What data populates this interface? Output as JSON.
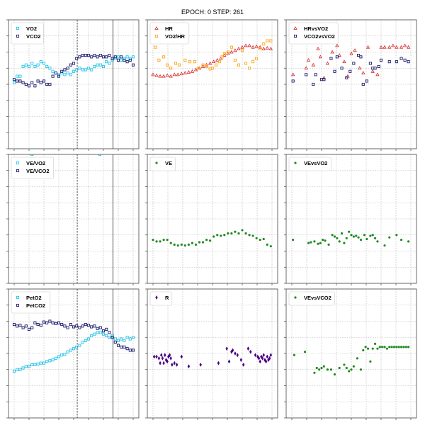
{
  "suptitle": "EPOCH: 0 STEP: 261",
  "colors": {
    "cyan": "#27c6ea",
    "navy": "#1a1a6e",
    "red": "#d62728",
    "orange": "#ffa51a",
    "green": "#228b22",
    "purple": "#4b0082",
    "grid": "#b0b0b0",
    "axis": "#444444"
  },
  "chart_data": [
    {
      "panel": "top-left",
      "type": "scatter",
      "xlim": [
        0,
        100
      ],
      "ylim": [
        0,
        8
      ],
      "vlines": [
        {
          "x": 53,
          "style": "dashed"
        },
        {
          "x": 83,
          "style": "solid"
        }
      ],
      "series": [
        {
          "name": "VO2",
          "marker": "square",
          "color": "cyan",
          "x": [
            0,
            2.5,
            5,
            7.5,
            10,
            12.5,
            15,
            17.5,
            20,
            22.5,
            25,
            27.5,
            30,
            32.5,
            35,
            37.5,
            40,
            42.5,
            45,
            47.5,
            50,
            52.5,
            55,
            57.5,
            60,
            62.5,
            65,
            67.5,
            70,
            72.5,
            75,
            77.5,
            80,
            82.5,
            85,
            87.5,
            90,
            92.5,
            95,
            97.5,
            100
          ],
          "y": [
            4.1,
            4.5,
            4.5,
            5.1,
            5.2,
            5.1,
            5.3,
            5.1,
            5.2,
            5.4,
            5.3,
            5.1,
            5.0,
            4.8,
            4.7,
            4.6,
            4.7,
            4.6,
            4.7,
            4.6,
            4.8,
            4.9,
            5.0,
            4.9,
            4.9,
            5.0,
            4.9,
            5.1,
            5.2,
            5.2,
            5.1,
            5.4,
            5.3,
            5.5,
            5.6,
            5.7,
            5.5,
            5.6,
            5.7,
            5.6,
            5.7
          ]
        },
        {
          "name": "VCO2",
          "marker": "square",
          "color": "navy",
          "x": [
            0,
            2.5,
            5,
            7.5,
            10,
            12.5,
            15,
            17.5,
            20,
            22.5,
            25,
            27.5,
            30,
            32.5,
            35,
            37.5,
            40,
            42.5,
            45,
            47.5,
            50,
            52.5,
            55,
            57.5,
            60,
            62.5,
            65,
            67.5,
            70,
            72.5,
            75,
            77.5,
            80,
            82.5,
            85,
            87.5,
            90,
            92.5,
            95,
            97.5,
            100
          ],
          "y": [
            4.3,
            4.2,
            4.2,
            4.1,
            4.0,
            3.9,
            4.1,
            3.9,
            4.2,
            4.1,
            4.2,
            4.0,
            4.0,
            4.5,
            4.7,
            4.5,
            4.8,
            4.9,
            5.0,
            5.2,
            5.3,
            5.6,
            5.7,
            5.8,
            5.8,
            5.8,
            5.7,
            5.8,
            5.7,
            5.8,
            5.7,
            5.7,
            5.8,
            5.6,
            5.7,
            5.5,
            5.7,
            5.5,
            5.4,
            5.5,
            5.2
          ]
        }
      ]
    },
    {
      "panel": "top-middle",
      "type": "scatter",
      "xlim": [
        0,
        100
      ],
      "ylim": [
        0,
        8
      ],
      "series": [
        {
          "name": "HR",
          "marker": "triangle",
          "color": "red",
          "x": [
            0,
            3,
            6,
            9,
            12,
            15,
            18,
            21,
            24,
            27,
            30,
            33,
            36,
            39,
            42,
            45,
            48,
            51,
            54,
            57,
            60,
            63,
            66,
            69,
            72,
            75,
            78,
            81,
            84,
            87,
            90,
            93,
            96,
            99
          ],
          "y": [
            4.6,
            4.55,
            4.5,
            4.5,
            4.55,
            4.5,
            4.6,
            4.6,
            4.65,
            4.7,
            4.75,
            4.8,
            4.9,
            5.0,
            5.1,
            5.2,
            5.3,
            5.4,
            5.5,
            5.6,
            5.8,
            5.9,
            6.0,
            6.1,
            6.2,
            6.3,
            6.4,
            6.4,
            6.3,
            6.35,
            6.3,
            6.2,
            6.25,
            6.2
          ]
        },
        {
          "name": "VO2/HR",
          "marker": "square",
          "color": "orange",
          "x": [
            2,
            5,
            9,
            12,
            15,
            19,
            22,
            27,
            31,
            35,
            38,
            42,
            45,
            48,
            50,
            53,
            56,
            58,
            60,
            63,
            66,
            69,
            72,
            75,
            78,
            81,
            84,
            87,
            90,
            93,
            96,
            99
          ],
          "y": [
            6.3,
            5.5,
            5.7,
            5.2,
            5.0,
            5.3,
            5.2,
            5.5,
            5.4,
            5.4,
            5.0,
            5.2,
            5.1,
            4.95,
            5.0,
            5.2,
            5.4,
            5.7,
            5.9,
            6.0,
            6.3,
            5.5,
            5.2,
            6.1,
            5.3,
            5.0,
            5.4,
            5.6,
            6.2,
            6.5,
            6.7,
            6.7
          ]
        }
      ]
    },
    {
      "panel": "top-right",
      "type": "scatter",
      "xlim": [
        0,
        100
      ],
      "ylim": [
        0,
        8
      ],
      "series": [
        {
          "name": "HRvsVO2",
          "marker": "triangle",
          "color": "red",
          "x": [
            1,
            12,
            14,
            18,
            22,
            24,
            27,
            30,
            34,
            38,
            40,
            44,
            47,
            50,
            53,
            57,
            60,
            64,
            68,
            72,
            75,
            78,
            82,
            85,
            88,
            92,
            95,
            98
          ],
          "y": [
            4.6,
            5.0,
            5.5,
            5.2,
            6.2,
            5.7,
            4.4,
            5.3,
            6.0,
            6.4,
            5.8,
            5.4,
            4.5,
            5.9,
            6.1,
            5.0,
            4.7,
            6.3,
            4.8,
            4.6,
            6.3,
            6.3,
            6.3,
            6.4,
            6.3,
            6.3,
            6.4,
            6.3
          ]
        },
        {
          "name": "VCO2vsVO2",
          "marker": "square",
          "color": "navy",
          "x": [
            1,
            12,
            18,
            20,
            25,
            27,
            33,
            36,
            38,
            42,
            46,
            49,
            52,
            56,
            58,
            60,
            63,
            66,
            68,
            70,
            73,
            75,
            82,
            88,
            92,
            95,
            98
          ],
          "y": [
            4.2,
            4.6,
            4.0,
            4.6,
            4.3,
            4.3,
            5.6,
            4.8,
            5.7,
            5.0,
            4.4,
            4.8,
            5.3,
            5.8,
            5.7,
            4.0,
            4.2,
            5.3,
            5.0,
            5.0,
            5.1,
            5.5,
            5.4,
            5.4,
            5.6,
            5.5,
            5.4
          ]
        }
      ]
    },
    {
      "panel": "middle-left",
      "type": "scatter",
      "xlim": [
        0,
        100
      ],
      "ylim": [
        0,
        8
      ],
      "vlines": [
        {
          "x": 53,
          "style": "dashed"
        },
        {
          "x": 83,
          "style": "solid"
        }
      ],
      "series": [
        {
          "name": "VE/VO2",
          "marker": "square",
          "color": "cyan",
          "x": [
            15,
            72
          ],
          "y": [
            8.0,
            8.0
          ]
        },
        {
          "name": "VE/VCO2",
          "marker": "square",
          "color": "navy",
          "x": [],
          "y": []
        }
      ]
    },
    {
      "panel": "middle-middle",
      "type": "scatter",
      "xlim": [
        0,
        100
      ],
      "ylim": [
        0,
        8
      ],
      "series": [
        {
          "name": "VE",
          "marker": "dot",
          "color": "green",
          "x": [
            0,
            3,
            6,
            9,
            12,
            15,
            18,
            21,
            24,
            27,
            30,
            33,
            36,
            39,
            42,
            45,
            48,
            51,
            54,
            57,
            60,
            63,
            66,
            69,
            72,
            75,
            78,
            81,
            84,
            87,
            90,
            93,
            96,
            99
          ],
          "y": [
            2.7,
            2.6,
            2.6,
            2.7,
            2.7,
            2.5,
            2.4,
            2.35,
            2.4,
            2.35,
            2.4,
            2.5,
            2.4,
            2.55,
            2.55,
            2.7,
            2.65,
            2.9,
            3.0,
            2.95,
            3.0,
            3.1,
            3.1,
            3.2,
            3.1,
            3.3,
            3.1,
            3.0,
            2.95,
            2.8,
            2.7,
            2.75,
            2.4,
            2.3
          ]
        }
      ]
    },
    {
      "panel": "middle-right",
      "type": "scatter",
      "xlim": [
        0,
        100
      ],
      "ylim": [
        0,
        8
      ],
      "series": [
        {
          "name": "VEvsVO2",
          "marker": "dot",
          "color": "green",
          "x": [
            1,
            14,
            16,
            19,
            22,
            24,
            26,
            28,
            31,
            34,
            36,
            38,
            40,
            42,
            44,
            46,
            48,
            50,
            52,
            54,
            56,
            58,
            61,
            63,
            66,
            68,
            70,
            72,
            78,
            82,
            88,
            92,
            98
          ],
          "y": [
            2.7,
            2.5,
            2.55,
            2.6,
            2.45,
            2.5,
            2.7,
            2.65,
            2.4,
            3.0,
            2.9,
            2.8,
            2.6,
            3.1,
            2.5,
            2.8,
            3.2,
            3.0,
            2.9,
            2.95,
            2.85,
            2.7,
            3.0,
            2.75,
            2.95,
            3.0,
            2.8,
            2.6,
            2.35,
            2.85,
            3.0,
            2.7,
            2.6
          ]
        }
      ]
    },
    {
      "panel": "bottom-left",
      "type": "scatter",
      "xlim": [
        0,
        100
      ],
      "ylim": [
        0,
        8
      ],
      "vlines": [
        {
          "x": 53,
          "style": "dashed"
        },
        {
          "x": 83,
          "style": "solid"
        }
      ],
      "series": [
        {
          "name": "PetO2",
          "marker": "square",
          "color": "cyan",
          "x": [
            0,
            2.5,
            5,
            7.5,
            10,
            12.5,
            15,
            17.5,
            20,
            22.5,
            25,
            27.5,
            30,
            32.5,
            35,
            37.5,
            40,
            42.5,
            45,
            47.5,
            50,
            52.5,
            55,
            57.5,
            60,
            62.5,
            65,
            67.5,
            70,
            72.5,
            75,
            77.5,
            80,
            82.5,
            85,
            87.5,
            90,
            92.5,
            95,
            97.5,
            100
          ],
          "y": [
            2.9,
            3.0,
            3.0,
            3.1,
            3.2,
            3.2,
            3.3,
            3.3,
            3.35,
            3.4,
            3.4,
            3.5,
            3.55,
            3.6,
            3.7,
            3.8,
            3.9,
            3.95,
            4.1,
            4.2,
            4.3,
            4.4,
            4.5,
            4.7,
            4.8,
            4.9,
            5.1,
            5.2,
            5.3,
            5.3,
            5.2,
            5.1,
            5.0,
            5.1,
            4.9,
            4.8,
            4.9,
            4.8,
            5.0,
            4.9,
            5.0
          ]
        },
        {
          "name": "PetCO2",
          "marker": "square",
          "color": "navy",
          "x": [
            0,
            2.5,
            5,
            7.5,
            10,
            12.5,
            15,
            17.5,
            20,
            22.5,
            25,
            27.5,
            30,
            32.5,
            35,
            37.5,
            40,
            42.5,
            45,
            47.5,
            50,
            52.5,
            55,
            57.5,
            60,
            62.5,
            65,
            67.5,
            70,
            72.5,
            75,
            77.5,
            80,
            82.5,
            85,
            87.5,
            90,
            92.5,
            95,
            97.5,
            100
          ],
          "y": [
            5.8,
            5.7,
            5.75,
            5.6,
            5.7,
            5.5,
            5.6,
            5.9,
            5.8,
            5.75,
            5.95,
            5.9,
            6.0,
            5.9,
            5.85,
            5.9,
            5.8,
            5.7,
            5.6,
            5.8,
            5.65,
            5.7,
            5.6,
            5.7,
            5.8,
            5.75,
            5.65,
            5.7,
            5.55,
            5.6,
            5.4,
            5.5,
            5.3,
            5.0,
            4.7,
            4.5,
            4.4,
            4.4,
            4.3,
            4.2,
            4.2
          ]
        }
      ]
    },
    {
      "panel": "bottom-middle",
      "type": "scatter",
      "xlim": [
        0,
        100
      ],
      "ylim": [
        0,
        8
      ],
      "series": [
        {
          "name": "R",
          "marker": "diamond",
          "color": "purple",
          "x": [
            1,
            3,
            5,
            6,
            7,
            8,
            9,
            10,
            11,
            12,
            13,
            14,
            15,
            16,
            18,
            20,
            24,
            30,
            40,
            55,
            62,
            64,
            66,
            67,
            69,
            71,
            74,
            76,
            80,
            82,
            86,
            88,
            89,
            90,
            91,
            92,
            93,
            94,
            95,
            96,
            97,
            98,
            99
          ],
          "y": [
            3.8,
            3.8,
            3.7,
            3.4,
            3.9,
            3.7,
            3.4,
            3.9,
            3.6,
            3.5,
            3.8,
            3.9,
            3.7,
            3.3,
            3.4,
            3.3,
            3.8,
            3.2,
            3.3,
            3.4,
            4.3,
            3.5,
            4.1,
            4.2,
            4.0,
            3.9,
            3.6,
            3.3,
            4.3,
            4.1,
            3.9,
            3.8,
            3.7,
            3.5,
            3.8,
            3.7,
            3.9,
            3.6,
            3.5,
            3.8,
            3.6,
            3.7,
            3.9
          ]
        }
      ]
    },
    {
      "panel": "bottom-right",
      "type": "scatter",
      "xlim": [
        0,
        100
      ],
      "ylim": [
        0,
        8
      ],
      "series": [
        {
          "name": "VEvsVCO2",
          "marker": "dot",
          "color": "green",
          "x": [
            2,
            11,
            19,
            21,
            23,
            25,
            27,
            30,
            33,
            36,
            40,
            44,
            46,
            48,
            50,
            52,
            55,
            58,
            60,
            62,
            64,
            66,
            68,
            70,
            72,
            74,
            76,
            78,
            80,
            82,
            84,
            86,
            88,
            90,
            92,
            94,
            96,
            98
          ],
          "y": [
            3.9,
            4.1,
            2.8,
            3.1,
            3.0,
            3.1,
            3.2,
            3.0,
            3.0,
            2.7,
            3.1,
            3.3,
            3.1,
            2.9,
            3.0,
            3.2,
            3.7,
            3.0,
            4.2,
            4.4,
            4.3,
            3.5,
            4.3,
            4.6,
            4.3,
            4.4,
            4.4,
            4.4,
            4.3,
            4.4,
            4.4,
            4.4,
            4.4,
            4.4,
            4.4,
            4.4,
            4.4,
            4.4
          ]
        }
      ]
    }
  ]
}
